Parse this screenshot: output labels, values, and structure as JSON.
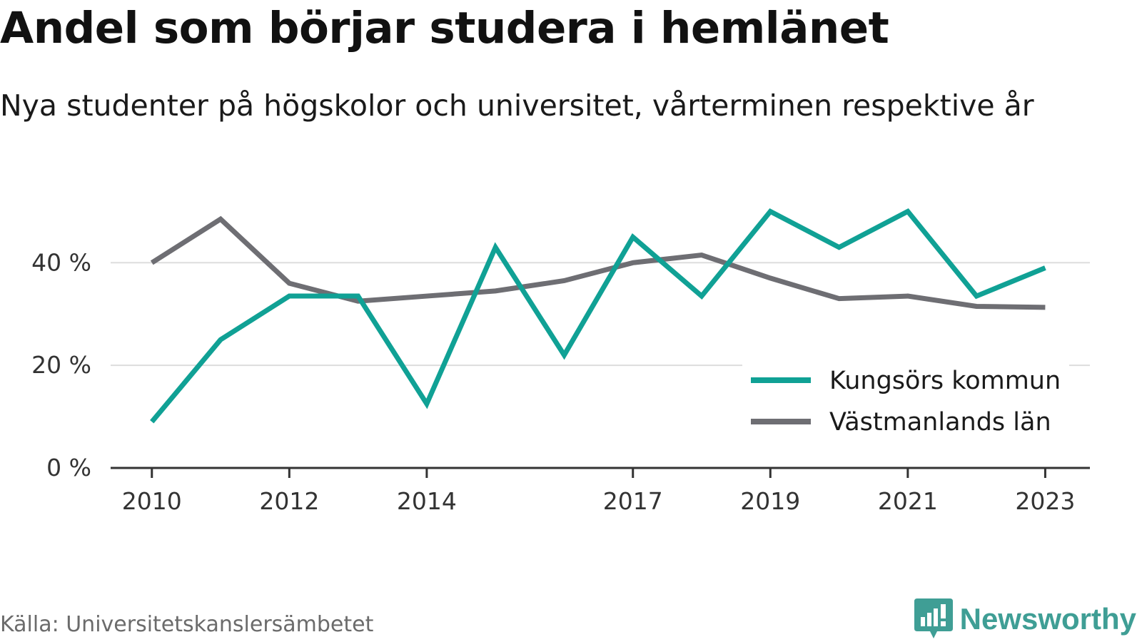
{
  "colors": {
    "kungsor": "#10a195",
    "vastmanland": "#6e6e73",
    "grid": "#dddddd",
    "axis": "#333333",
    "brand": "#3f9e95"
  },
  "title": "Andel som börjar studera i hemlänet",
  "subtitle": "Nya studenter på högskolor och universitet, vårterminen respektive år",
  "source": "Källa: Universitetskanslersämbetet",
  "brand": {
    "name": "Newsworthy",
    "icon": "newsworthy-logo-icon"
  },
  "chart_data": {
    "type": "line",
    "title": "Andel som börjar studera i hemlänet",
    "subtitle": "Nya studenter på högskolor och universitet, vårterminen respektive år",
    "x": [
      2010,
      2011,
      2012,
      2013,
      2014,
      2015,
      2016,
      2017,
      2018,
      2019,
      2020,
      2021,
      2022,
      2023
    ],
    "series": [
      {
        "name": "Kungsörs kommun",
        "values": [
          9,
          25,
          33.5,
          33.5,
          12.5,
          43,
          22,
          45,
          33.5,
          50,
          43,
          50,
          33.5,
          39
        ]
      },
      {
        "name": "Västmanlands län",
        "values": [
          40,
          48.5,
          36,
          32.5,
          33.5,
          34.5,
          36.5,
          40,
          41.5,
          37,
          33,
          33.5,
          31.5,
          31.3
        ]
      }
    ],
    "x_tick_labels": [
      "2010",
      "2012",
      "2014",
      "2017",
      "2019",
      "2021",
      "2023"
    ],
    "y_ticks": [
      0,
      20,
      40
    ],
    "y_tick_labels": [
      "0 %",
      "20 %",
      "40 %"
    ],
    "ylim": [
      0,
      52
    ],
    "xlim": [
      2009.4,
      2023.65
    ],
    "grid": true,
    "legend_position": "bottom-right"
  }
}
